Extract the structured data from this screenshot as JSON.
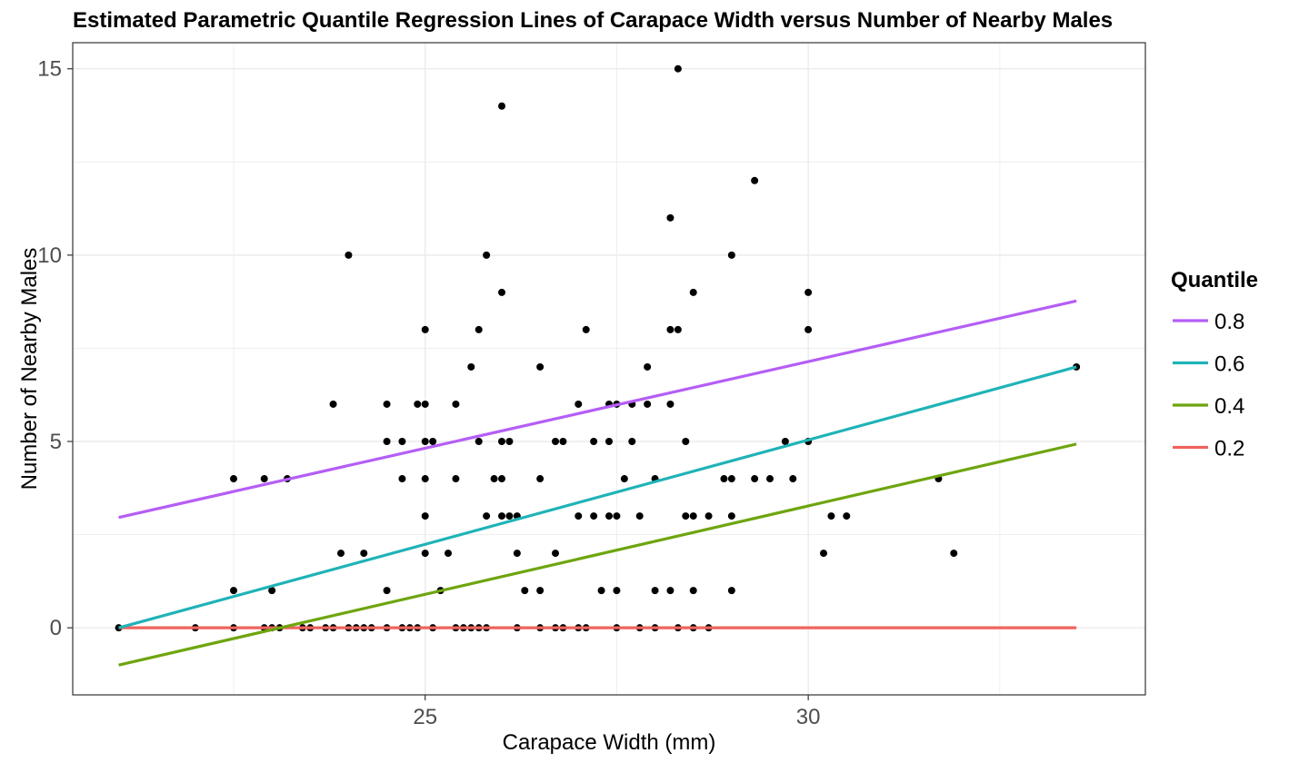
{
  "chart_data": {
    "type": "scatter",
    "title": "Estimated Parametric Quantile Regression Lines of Carapace Width versus Number of Nearby Males",
    "xlabel": "Carapace Width (mm)",
    "ylabel": "Number of Nearby Males",
    "xlim": [
      20.4,
      34.4
    ],
    "ylim": [
      -1.8,
      15.7
    ],
    "x_ticks": [
      25,
      30
    ],
    "y_ticks": [
      0,
      5,
      10,
      15
    ],
    "grid": true,
    "legend": {
      "title": "Quantile",
      "position": "right",
      "entries": [
        "0.8",
        "0.6",
        "0.4",
        "0.2"
      ]
    },
    "points": [
      [
        21.0,
        0
      ],
      [
        22.0,
        0
      ],
      [
        22.5,
        0
      ],
      [
        22.5,
        1
      ],
      [
        22.5,
        4
      ],
      [
        22.9,
        0
      ],
      [
        22.9,
        4
      ],
      [
        23.0,
        0
      ],
      [
        23.0,
        1
      ],
      [
        23.1,
        0
      ],
      [
        23.2,
        4
      ],
      [
        23.4,
        0
      ],
      [
        23.5,
        0
      ],
      [
        23.7,
        0
      ],
      [
        23.8,
        0
      ],
      [
        23.8,
        6
      ],
      [
        23.9,
        2
      ],
      [
        24.0,
        0
      ],
      [
        24.0,
        10
      ],
      [
        24.1,
        0
      ],
      [
        24.2,
        0
      ],
      [
        24.2,
        2
      ],
      [
        24.3,
        0
      ],
      [
        24.5,
        0
      ],
      [
        24.5,
        1
      ],
      [
        24.5,
        5
      ],
      [
        24.5,
        6
      ],
      [
        24.7,
        0
      ],
      [
        24.7,
        4
      ],
      [
        24.7,
        5
      ],
      [
        24.8,
        0
      ],
      [
        24.9,
        0
      ],
      [
        24.9,
        6
      ],
      [
        25.0,
        2
      ],
      [
        25.0,
        3
      ],
      [
        25.0,
        4
      ],
      [
        25.0,
        5
      ],
      [
        25.0,
        6
      ],
      [
        25.0,
        8
      ],
      [
        25.1,
        0
      ],
      [
        25.1,
        5
      ],
      [
        25.2,
        1
      ],
      [
        25.3,
        2
      ],
      [
        25.4,
        0
      ],
      [
        25.4,
        4
      ],
      [
        25.4,
        6
      ],
      [
        25.5,
        0
      ],
      [
        25.6,
        0
      ],
      [
        25.6,
        7
      ],
      [
        25.7,
        0
      ],
      [
        25.7,
        5
      ],
      [
        25.7,
        8
      ],
      [
        25.8,
        0
      ],
      [
        25.8,
        3
      ],
      [
        25.8,
        10
      ],
      [
        25.9,
        4
      ],
      [
        26.0,
        3
      ],
      [
        26.0,
        4
      ],
      [
        26.0,
        5
      ],
      [
        26.0,
        9
      ],
      [
        26.0,
        14
      ],
      [
        26.1,
        3
      ],
      [
        26.1,
        5
      ],
      [
        26.2,
        0
      ],
      [
        26.2,
        2
      ],
      [
        26.2,
        3
      ],
      [
        26.3,
        1
      ],
      [
        26.5,
        0
      ],
      [
        26.5,
        1
      ],
      [
        26.5,
        4
      ],
      [
        26.5,
        7
      ],
      [
        26.7,
        0
      ],
      [
        26.7,
        2
      ],
      [
        26.7,
        5
      ],
      [
        26.8,
        0
      ],
      [
        26.8,
        5
      ],
      [
        27.0,
        0
      ],
      [
        27.0,
        3
      ],
      [
        27.0,
        6
      ],
      [
        27.1,
        0
      ],
      [
        27.1,
        8
      ],
      [
        27.2,
        3
      ],
      [
        27.2,
        5
      ],
      [
        27.3,
        1
      ],
      [
        27.4,
        3
      ],
      [
        27.4,
        5
      ],
      [
        27.4,
        6
      ],
      [
        27.5,
        0
      ],
      [
        27.5,
        1
      ],
      [
        27.5,
        3
      ],
      [
        27.5,
        6
      ],
      [
        27.6,
        4
      ],
      [
        27.7,
        5
      ],
      [
        27.7,
        6
      ],
      [
        27.8,
        0
      ],
      [
        27.8,
        3
      ],
      [
        27.9,
        6
      ],
      [
        27.9,
        7
      ],
      [
        28.0,
        0
      ],
      [
        28.0,
        1
      ],
      [
        28.0,
        4
      ],
      [
        28.2,
        1
      ],
      [
        28.2,
        6
      ],
      [
        28.2,
        8
      ],
      [
        28.2,
        11
      ],
      [
        28.3,
        0
      ],
      [
        28.3,
        8
      ],
      [
        28.3,
        15
      ],
      [
        28.4,
        3
      ],
      [
        28.4,
        5
      ],
      [
        28.5,
        0
      ],
      [
        28.5,
        1
      ],
      [
        28.5,
        3
      ],
      [
        28.5,
        9
      ],
      [
        28.7,
        0
      ],
      [
        28.7,
        3
      ],
      [
        28.9,
        4
      ],
      [
        29.0,
        1
      ],
      [
        29.0,
        3
      ],
      [
        29.0,
        4
      ],
      [
        29.0,
        10
      ],
      [
        29.3,
        4
      ],
      [
        29.3,
        12
      ],
      [
        29.5,
        4
      ],
      [
        29.7,
        5
      ],
      [
        29.8,
        4
      ],
      [
        30.0,
        5
      ],
      [
        30.0,
        8
      ],
      [
        30.0,
        9
      ],
      [
        30.2,
        2
      ],
      [
        30.3,
        3
      ],
      [
        30.5,
        3
      ],
      [
        31.7,
        4
      ],
      [
        31.9,
        2
      ],
      [
        33.5,
        7
      ]
    ],
    "series": [
      {
        "name": "0.8",
        "color": "#B55EF5",
        "x": [
          21.0,
          33.5
        ],
        "y": [
          2.96,
          8.77
        ]
      },
      {
        "name": "0.6",
        "color": "#1FB3B7",
        "x": [
          21.0,
          33.5
        ],
        "y": [
          0.0,
          7.0
        ]
      },
      {
        "name": "0.4",
        "color": "#6EA50E",
        "x": [
          21.0,
          33.5
        ],
        "y": [
          -1.0,
          4.93
        ]
      },
      {
        "name": "0.2",
        "color": "#F0635E",
        "x": [
          21.0,
          33.5
        ],
        "y": [
          0.0,
          0.0
        ]
      }
    ]
  }
}
